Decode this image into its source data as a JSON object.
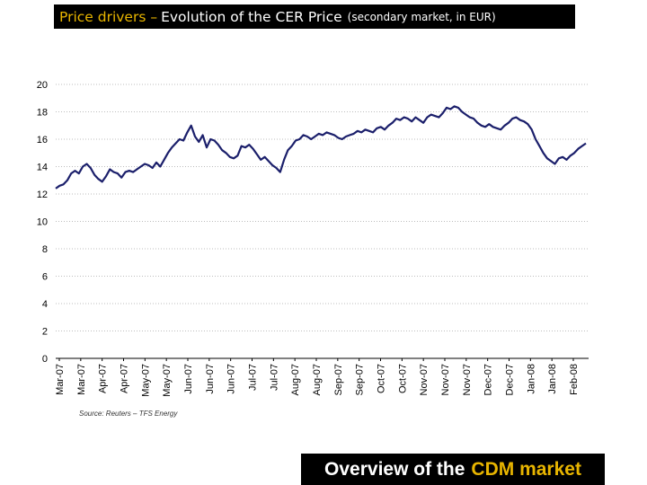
{
  "header": {
    "title_accent": "Price drivers –",
    "title_main": "Evolution of the CER Price",
    "title_sub": "(secondary market, in EUR)"
  },
  "footer": {
    "text_white": "Overview of the",
    "text_gold": "CDM market"
  },
  "colors": {
    "line": "#1b1f6b",
    "accent": "#e8b500",
    "bar": "#000000",
    "grid": "#bdbdbd"
  },
  "chart_data": {
    "type": "line",
    "title": "Evolution of the CER Price",
    "source": "Source: Reuters – TFS Energy",
    "ylim": [
      0,
      20
    ],
    "y_ticks": [
      0,
      2,
      4,
      6,
      8,
      10,
      12,
      14,
      16,
      18,
      20
    ],
    "x_ticks": [
      "Mar-07",
      "Mar-07",
      "Apr-07",
      "Apr-07",
      "May-07",
      "May-07",
      "Jun-07",
      "Jun-07",
      "Jun-07",
      "Jul-07",
      "Jul-07",
      "Aug-07",
      "Aug-07",
      "Sep-07",
      "Sep-07",
      "Oct-07",
      "Oct-07",
      "Nov-07",
      "Nov-07",
      "Nov-07",
      "Dec-07",
      "Dec-07",
      "Jan-08",
      "Jan-08",
      "Feb-08"
    ],
    "grid": "horizontal dotted",
    "series": [
      {
        "values": [
          12.4,
          12.6,
          12.7,
          13.0,
          13.5,
          13.7,
          13.5,
          14.0,
          14.2,
          13.9,
          13.4,
          13.1,
          12.9,
          13.3,
          13.8,
          13.6,
          13.5,
          13.2,
          13.6,
          13.7,
          13.6,
          13.8,
          14.0,
          14.2,
          14.1,
          13.9,
          14.3,
          14.0,
          14.5,
          15.0,
          15.4,
          15.7,
          16.0,
          15.9,
          16.5,
          17.0,
          16.2,
          15.8,
          16.3,
          15.4,
          16.0,
          15.9,
          15.6,
          15.2,
          15.0,
          14.7,
          14.6,
          14.8,
          15.5,
          15.4,
          15.6,
          15.3,
          14.9,
          14.5,
          14.7,
          14.4,
          14.1,
          13.9,
          13.6,
          14.5,
          15.2,
          15.5,
          15.9,
          16.0,
          16.3,
          16.2,
          16.0,
          16.2,
          16.4,
          16.3,
          16.5,
          16.4,
          16.3,
          16.1,
          16.0,
          16.2,
          16.3,
          16.4,
          16.6,
          16.5,
          16.7,
          16.6,
          16.5,
          16.8,
          16.9,
          16.7,
          17.0,
          17.2,
          17.5,
          17.4,
          17.6,
          17.5,
          17.3,
          17.6,
          17.4,
          17.2,
          17.6,
          17.8,
          17.7,
          17.6,
          17.9,
          18.3,
          18.2,
          18.4,
          18.3,
          18.0,
          17.8,
          17.6,
          17.5,
          17.2,
          17.0,
          16.9,
          17.1,
          16.9,
          16.8,
          16.7,
          17.0,
          17.2,
          17.5,
          17.6,
          17.4,
          17.3,
          17.1,
          16.7,
          16.0,
          15.5,
          15.0,
          14.6,
          14.4,
          14.2,
          14.6,
          14.7,
          14.5,
          14.8,
          15.0,
          15.3,
          15.5,
          15.7
        ]
      }
    ]
  }
}
